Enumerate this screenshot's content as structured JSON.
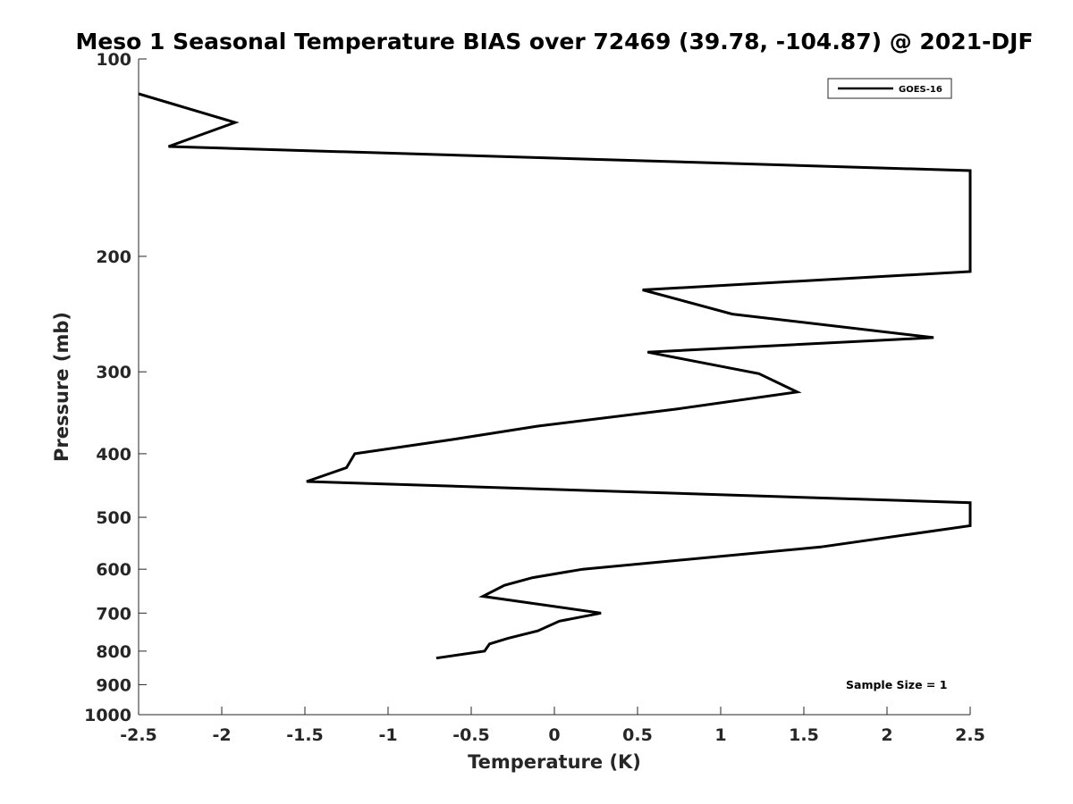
{
  "chart_data": {
    "type": "line",
    "title": "Meso 1 Seasonal Temperature BIAS over 72469 (39.78, -104.87) @ 2021-DJF",
    "xlabel": "Temperature (K)",
    "ylabel": "Pressure (mb)",
    "xlim": [
      -2.5,
      2.5
    ],
    "ylim": [
      100,
      1000
    ],
    "yscale": "log",
    "yreversed": true,
    "grid": false,
    "legend_position": "top-right",
    "x_ticks": [
      -2.5,
      -2,
      -1.5,
      -1,
      -0.5,
      0,
      0.5,
      1,
      1.5,
      2,
      2.5
    ],
    "x_tick_labels": [
      "-2.5",
      "-2",
      "-1.5",
      "-1",
      "-0.5",
      "0",
      "0.5",
      "1",
      "1.5",
      "2",
      "2.5"
    ],
    "y_ticks": [
      100,
      200,
      300,
      400,
      500,
      600,
      700,
      800,
      900,
      1000
    ],
    "y_tick_labels": [
      "100",
      "200",
      "300",
      "400",
      "500",
      "600",
      "700",
      "800",
      "900",
      "1000"
    ],
    "series": [
      {
        "name": "GOES-16",
        "color": "#000000",
        "pressure": [
          113,
          125,
          136,
          148,
          211,
          225,
          245,
          266,
          280,
          302,
          322,
          342,
          363,
          380,
          400,
          420,
          441,
          475,
          515,
          555,
          600,
          618,
          635,
          660,
          700,
          720,
          745,
          765,
          780,
          800,
          820
        ],
        "temperature": [
          -2.5,
          -1.92,
          -2.32,
          2.5,
          2.5,
          0.53,
          1.07,
          2.28,
          0.56,
          1.23,
          1.46,
          0.73,
          -0.1,
          -0.6,
          -1.2,
          -1.25,
          -1.49,
          2.5,
          2.5,
          1.6,
          0.17,
          -0.13,
          -0.3,
          -0.43,
          0.28,
          0.03,
          -0.1,
          -0.28,
          -0.39,
          -0.42,
          -0.71
        ]
      }
    ],
    "annotation": "Sample Size = 1"
  }
}
